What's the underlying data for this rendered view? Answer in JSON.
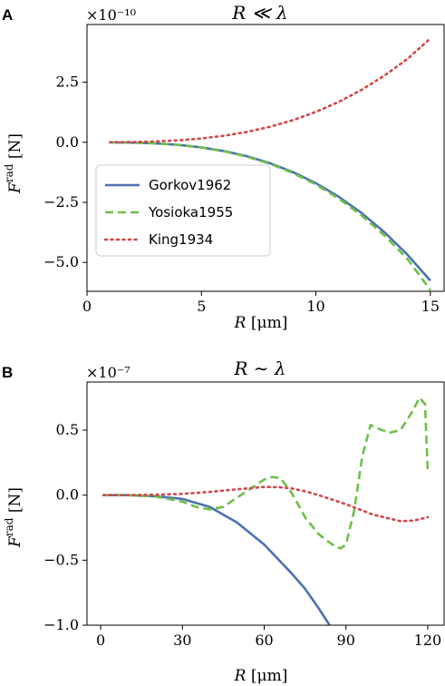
{
  "chart_data": [
    {
      "panel": "A",
      "type": "line",
      "title": "R ≪ λ",
      "xlabel": "R [μm]",
      "ylabel": "F^rad [N]",
      "offset_text": "×10⁻¹⁰",
      "xlim": [
        0,
        15.6
      ],
      "ylim": [
        -6.2,
        4.9
      ],
      "xticks": [
        0,
        5,
        10,
        15
      ],
      "yticks": [
        -5.0,
        -2.5,
        0.0,
        2.5
      ],
      "ytick_labels": [
        "−5.0",
        "−2.5",
        "0.0",
        "2.5"
      ],
      "legend": "lower-left",
      "series": [
        {
          "name": "Gorkov1962",
          "color": "#4c72b0",
          "dash": "solid",
          "x": [
            1,
            2,
            3,
            4,
            5,
            6,
            7,
            8,
            9,
            10,
            11,
            12,
            13,
            14,
            15
          ],
          "y": [
            -0.002,
            -0.014,
            -0.046,
            -0.109,
            -0.213,
            -0.368,
            -0.585,
            -0.873,
            -1.243,
            -1.705,
            -2.269,
            -2.946,
            -3.746,
            -4.679,
            -5.755
          ]
        },
        {
          "name": "Yosioka1955",
          "color": "#6fbf4a",
          "dash": "dashed",
          "x": [
            1,
            2,
            3,
            4,
            5,
            6,
            7,
            8,
            9,
            10,
            11,
            12,
            13,
            14,
            15
          ],
          "y": [
            -0.002,
            -0.014,
            -0.047,
            -0.112,
            -0.219,
            -0.378,
            -0.602,
            -0.898,
            -1.28,
            -1.758,
            -2.343,
            -3.047,
            -3.882,
            -4.857,
            -6.15
          ]
        },
        {
          "name": "King1934",
          "color": "#d0474a",
          "dash": "dotted",
          "x": [
            1,
            2,
            3,
            4,
            5,
            6,
            7,
            8,
            9,
            10,
            11,
            12,
            13,
            14,
            15
          ],
          "y": [
            0.001,
            0.01,
            0.034,
            0.081,
            0.158,
            0.273,
            0.433,
            0.647,
            0.921,
            1.264,
            1.682,
            2.184,
            2.777,
            3.468,
            4.32
          ]
        }
      ]
    },
    {
      "panel": "B",
      "type": "line",
      "title": "R ∼ λ",
      "xlabel": "R [μm]",
      "ylabel": "F^rad [N]",
      "offset_text": "×10⁻⁷",
      "xlim": [
        -5,
        126
      ],
      "ylim": [
        -1.0,
        0.87
      ],
      "xticks": [
        0,
        30,
        60,
        90,
        120
      ],
      "yticks": [
        -1.0,
        -0.5,
        0.0,
        0.5
      ],
      "ytick_labels": [
        "−1.0",
        "−0.5",
        "0.0",
        "0.5"
      ],
      "series": [
        {
          "name": "Gorkov1962",
          "color": "#4c72b0",
          "dash": "solid",
          "x": [
            1,
            10,
            20,
            30,
            40,
            50,
            60,
            65,
            70,
            75,
            80,
            84
          ],
          "y": [
            0.0,
            0.0,
            -0.009,
            -0.029,
            -0.09,
            -0.21,
            -0.38,
            -0.49,
            -0.6,
            -0.72,
            -0.87,
            -1.0
          ]
        },
        {
          "name": "Yosioka1955",
          "color": "#6fbf4a",
          "dash": "dashed",
          "x": [
            1,
            10,
            20,
            30,
            35,
            40,
            45,
            50,
            55,
            60,
            63,
            66,
            70,
            75,
            80,
            85,
            88,
            90,
            93,
            96,
            99,
            102,
            106,
            110,
            114,
            117,
            119,
            120
          ],
          "y": [
            0.0,
            0.0,
            -0.01,
            -0.05,
            -0.09,
            -0.11,
            -0.09,
            -0.02,
            0.05,
            0.12,
            0.14,
            0.13,
            0.02,
            -0.17,
            -0.3,
            -0.38,
            -0.41,
            -0.38,
            -0.12,
            0.3,
            0.54,
            0.51,
            0.48,
            0.5,
            0.63,
            0.75,
            0.7,
            0.18
          ]
        },
        {
          "name": "King1934",
          "color": "#d0474a",
          "dash": "dotted",
          "x": [
            1,
            10,
            20,
            30,
            40,
            50,
            60,
            65,
            70,
            75,
            80,
            90,
            100,
            110,
            115,
            120
          ],
          "y": [
            0.0,
            0.0,
            0.003,
            0.01,
            0.025,
            0.045,
            0.063,
            0.062,
            0.052,
            0.03,
            0.0,
            -0.07,
            -0.15,
            -0.2,
            -0.195,
            -0.17
          ]
        }
      ]
    }
  ]
}
